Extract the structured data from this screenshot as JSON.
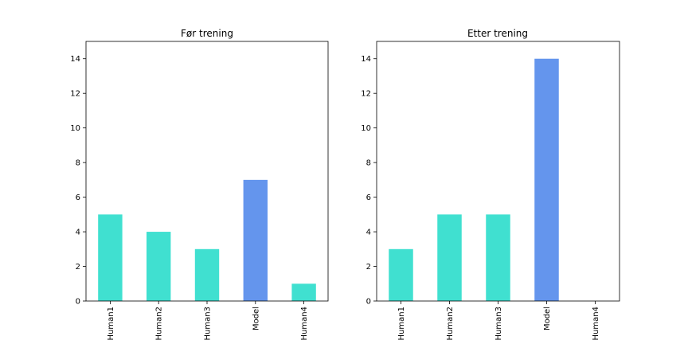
{
  "chart_data": [
    {
      "type": "bar",
      "title": "Før trening",
      "xlabel": "",
      "ylabel": "",
      "categories": [
        "Human1",
        "Human2",
        "Human3",
        "Model",
        "Human4"
      ],
      "values": [
        5,
        4,
        3,
        7,
        1
      ],
      "colors": [
        "#40e0d0",
        "#40e0d0",
        "#40e0d0",
        "#6495ed",
        "#40e0d0"
      ],
      "ylim": [
        0,
        15
      ],
      "yticks": [
        0,
        2,
        4,
        6,
        8,
        10,
        12,
        14
      ],
      "grid": false
    },
    {
      "type": "bar",
      "title": "Etter trening",
      "xlabel": "",
      "ylabel": "",
      "categories": [
        "Human1",
        "Human2",
        "Human3",
        "Model",
        "Human4"
      ],
      "values": [
        3,
        5,
        5,
        14,
        0
      ],
      "colors": [
        "#40e0d0",
        "#40e0d0",
        "#40e0d0",
        "#6495ed",
        "#40e0d0"
      ],
      "ylim": [
        0,
        15
      ],
      "yticks": [
        0,
        2,
        4,
        6,
        8,
        10,
        12,
        14
      ],
      "grid": false
    }
  ]
}
